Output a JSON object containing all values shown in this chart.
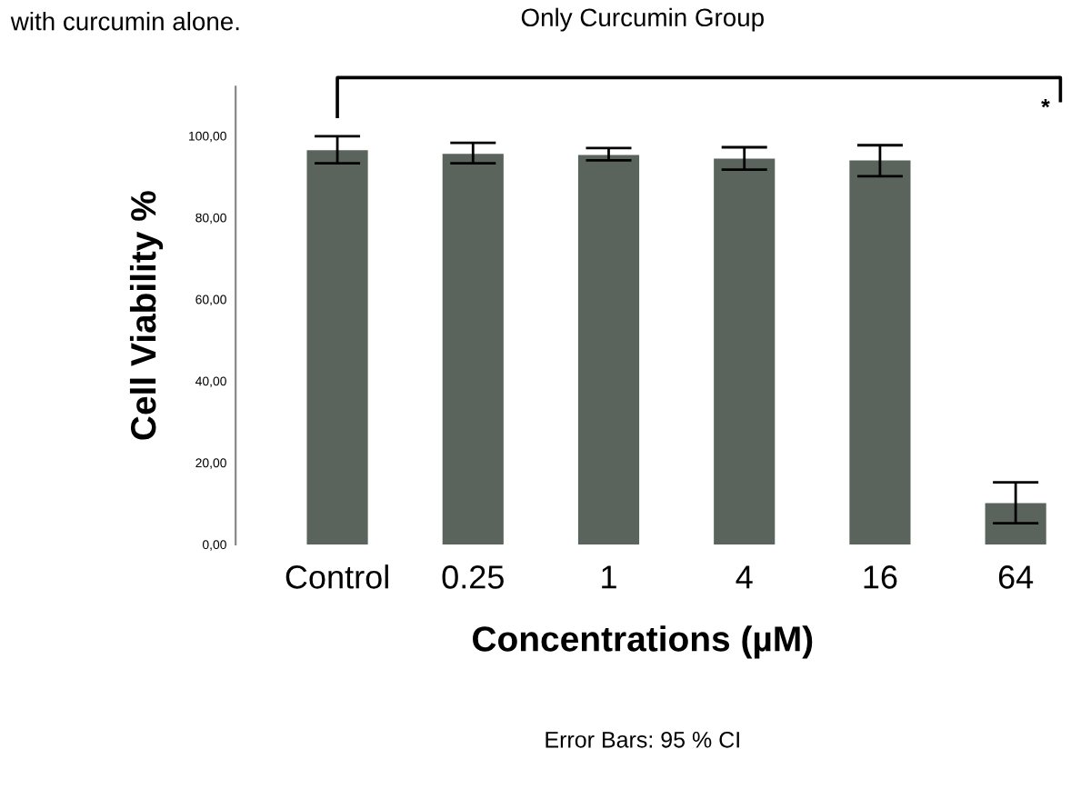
{
  "chart_data": {
    "type": "bar",
    "title": "Only Curcumin Group",
    "xlabel": "Concentrations (µM)",
    "ylabel": "Cell Viability %",
    "categories": [
      "Control",
      "0.25",
      "1",
      "4",
      "16",
      "64"
    ],
    "values": [
      96.5,
      95.6,
      95.3,
      94.4,
      94.0,
      10.1
    ],
    "errors": [
      [
        93.3,
        99.9
      ],
      [
        93.3,
        98.3
      ],
      [
        94.0,
        97.0
      ],
      [
        91.7,
        97.2
      ],
      [
        90.1,
        97.7
      ],
      [
        5.2,
        15.2
      ]
    ],
    "color": "#5a635c",
    "ylim": [
      0,
      112
    ],
    "yticks": [
      {
        "value": 0,
        "label": "0,00"
      },
      {
        "value": 20,
        "label": "20,00"
      },
      {
        "value": 40,
        "label": "40,00"
      },
      {
        "value": 60,
        "label": "60,00"
      },
      {
        "value": 80,
        "label": "80,00"
      },
      {
        "value": 100,
        "label": "100,00"
      }
    ],
    "grid": false,
    "annotations": [
      "*",
      "Error Bars: 95 % CI",
      "with curcumin alone."
    ]
  }
}
